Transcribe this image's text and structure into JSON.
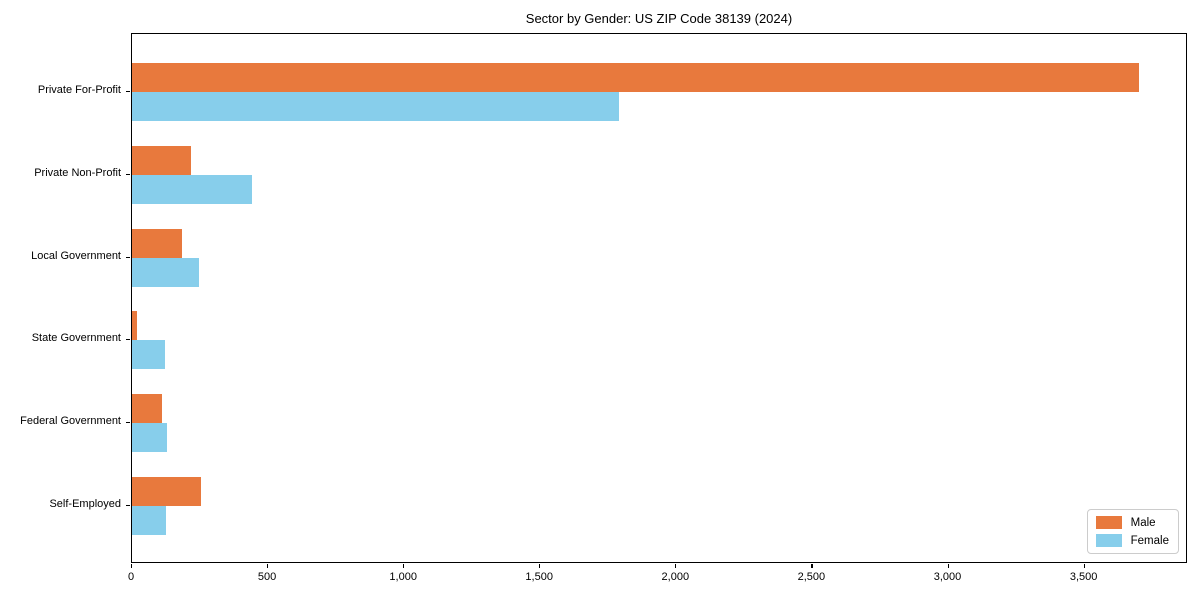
{
  "chart_data": {
    "type": "bar",
    "orientation": "horizontal",
    "title": "Sector by Gender: US ZIP Code 38139 (2024)",
    "categories": [
      "Private For-Profit",
      "Private Non-Profit",
      "Local Government",
      "State Government",
      "Federal Government",
      "Self-Employed"
    ],
    "series": [
      {
        "name": "Male",
        "color": "#E8793D",
        "values": [
          3700,
          215,
          185,
          18,
          110,
          255
        ]
      },
      {
        "name": "Female",
        "color": "#87CEEB",
        "values": [
          1790,
          440,
          245,
          120,
          130,
          125
        ]
      }
    ],
    "xlabel": "",
    "ylabel": "",
    "xlim": [
      0,
      3880
    ],
    "x_ticks": [
      0,
      500,
      1000,
      1500,
      2000,
      2500,
      3000,
      3500
    ],
    "x_tick_labels": [
      "0",
      "500",
      "1,000",
      "1,500",
      "2,000",
      "2,500",
      "3,000",
      "3,500"
    ],
    "grid": false,
    "legend": {
      "position": "lower right",
      "entries": [
        "Male",
        "Female"
      ]
    }
  },
  "colors": {
    "male": "#E8793D",
    "female": "#87CEEB",
    "axis": "#000000",
    "legend_border": "#CCCCCC",
    "background": "#FFFFFF"
  }
}
